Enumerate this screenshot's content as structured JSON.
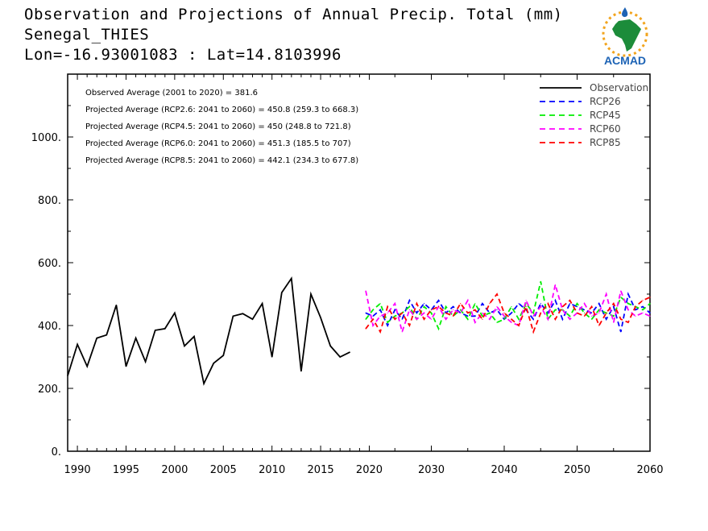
{
  "header": {
    "title": "Observation and Projections of Annual Precip. Total (mm)",
    "location": "Senegal_THIES",
    "coords": "Lon=-16.93001083 : Lat=14.8103996"
  },
  "logo": {
    "text": "ACMAD",
    "icon": "africa-map-logo"
  },
  "colors": {
    "observation": "#000000",
    "RCP26": "#0000ff",
    "RCP45": "#00ee00",
    "RCP60": "#ff00ff",
    "RCP85": "#ff0000"
  },
  "chart_data": {
    "type": "line",
    "ylim": [
      0,
      1200
    ],
    "y_ticks": [
      0,
      200,
      400,
      600,
      800,
      1000
    ],
    "y_tick_labels": [
      "0.",
      "200.",
      "400.",
      "600.",
      "800.",
      "1000."
    ],
    "x_ticks_hist": [
      1990,
      1995,
      2000,
      2005,
      2010,
      2015,
      2020
    ],
    "x_ticks_proj": [
      2030,
      2040,
      2050,
      2060
    ],
    "annotations": [
      "Observed Average (2001 to 2020) = 381.6",
      "Projected Average (RCP2.6: 2041 to 2060) = 450.8 (259.3 to 668.3)",
      "Projected Average (RCP4.5: 2041 to 2060) = 450 (248.8 to 721.8)",
      "Projected Average (RCP6.0: 2041 to 2060) = 451.3 (185.5 to 707)",
      "Projected Average (RCP8.5: 2041 to 2060) = 442.1 (234.3 to 677.8)"
    ],
    "legend": [
      "Observation",
      "RCP26",
      "RCP45",
      "RCP60",
      "RCP85"
    ],
    "observation": {
      "name": "Observation",
      "x": [
        1989,
        1990,
        1991,
        1992,
        1993,
        1994,
        1995,
        1996,
        1997,
        1998,
        1999,
        2000,
        2001,
        2002,
        2003,
        2004,
        2005,
        2006,
        2007,
        2008,
        2009,
        2010,
        2011,
        2012,
        2013,
        2014,
        2015,
        2016,
        2017,
        2018,
        2019,
        2020
      ],
      "values": [
        240,
        340,
        270,
        360,
        370,
        465,
        270,
        360,
        285,
        385,
        390,
        440,
        335,
        365,
        215,
        280,
        305,
        430,
        438,
        420,
        470,
        300,
        505,
        550,
        255,
        500,
        425,
        335,
        300,
        315,
        null,
        null
      ]
    },
    "projections_x": [
      2021,
      2022,
      2023,
      2024,
      2025,
      2026,
      2027,
      2028,
      2029,
      2030,
      2031,
      2032,
      2033,
      2034,
      2035,
      2036,
      2037,
      2038,
      2039,
      2040,
      2041,
      2042,
      2043,
      2044,
      2045,
      2046,
      2047,
      2048,
      2049,
      2050,
      2051,
      2052,
      2053,
      2054,
      2055,
      2056,
      2057,
      2058,
      2059,
      2060
    ],
    "series": [
      {
        "name": "RCP26",
        "values": [
          440,
          430,
          450,
          400,
          450,
          420,
          480,
          440,
          470,
          450,
          480,
          440,
          460,
          440,
          430,
          430,
          470,
          440,
          450,
          420,
          440,
          470,
          450,
          420,
          470,
          440,
          480,
          420,
          470,
          460,
          450,
          440,
          470,
          420,
          460,
          380,
          500,
          450,
          460,
          440
        ]
      },
      {
        "name": "RCP45",
        "values": [
          420,
          450,
          470,
          410,
          430,
          440,
          460,
          420,
          460,
          440,
          390,
          460,
          430,
          450,
          420,
          470,
          430,
          440,
          410,
          420,
          460,
          420,
          470,
          440,
          540,
          420,
          450,
          450,
          430,
          470,
          440,
          420,
          450,
          440,
          430,
          490,
          470,
          460,
          450,
          470
        ]
      },
      {
        "name": "RCP60",
        "values": [
          510,
          400,
          430,
          440,
          470,
          380,
          450,
          420,
          440,
          420,
          460,
          420,
          450,
          440,
          480,
          410,
          440,
          420,
          460,
          430,
          410,
          400,
          480,
          430,
          460,
          420,
          530,
          450,
          420,
          440,
          470,
          430,
          440,
          500,
          410,
          510,
          450,
          430,
          440,
          430
        ]
      },
      {
        "name": "RCP85",
        "values": [
          390,
          420,
          380,
          460,
          420,
          440,
          400,
          470,
          420,
          450,
          460,
          440,
          430,
          470,
          440,
          450,
          420,
          470,
          500,
          440,
          420,
          400,
          460,
          380,
          440,
          470,
          420,
          460,
          480,
          440,
          430,
          460,
          400,
          440,
          470,
          420,
          410,
          460,
          480,
          490
        ]
      }
    ]
  }
}
